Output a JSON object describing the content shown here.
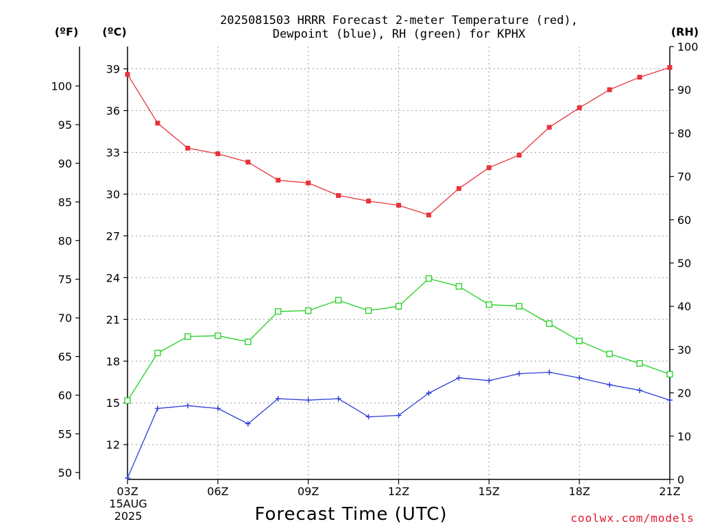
{
  "title_line1": "2025081503 HRRR Forecast 2-meter Temperature (red),",
  "title_line2": "Dewpoint (blue), RH (green) for KPHX",
  "unit_f": "(ºF)",
  "unit_c": "(ºC)",
  "unit_rh": "(RH)",
  "credit": "coolwx.com/models",
  "chart_data": {
    "type": "line",
    "title": "2025081503 HRRR Forecast 2-meter Temperature (red), Dewpoint (blue), RH (green) for KPHX",
    "xlabel": "Forecast Time (UTC)",
    "x_ticks": [
      "03Z",
      "06Z",
      "09Z",
      "12Z",
      "15Z",
      "18Z",
      "21Z"
    ],
    "x_date_lines": [
      "15AUG",
      "2025"
    ],
    "x_hours": [
      3,
      4,
      5,
      6,
      7,
      8,
      9,
      10,
      11,
      12,
      13,
      14,
      15,
      16,
      17,
      18,
      19,
      20,
      21
    ],
    "xlim": [
      3,
      21
    ],
    "grid": true,
    "axes": {
      "celsius": {
        "label": "(ºC)",
        "ticks": [
          12,
          15,
          18,
          21,
          24,
          27,
          30,
          33,
          36,
          39
        ],
        "range": [
          9.5,
          40.6
        ]
      },
      "fahrenheit": {
        "label": "(ºF)",
        "ticks": [
          50,
          55,
          60,
          65,
          70,
          75,
          80,
          85,
          90,
          95,
          100
        ],
        "range": [
          49.1,
          105.1
        ]
      },
      "rh": {
        "label": "(RH)",
        "ticks": [
          0,
          10,
          20,
          30,
          40,
          50,
          60,
          70,
          80,
          90,
          100
        ],
        "range": [
          0,
          100
        ]
      }
    },
    "series": [
      {
        "color": "#e8333a",
        "axis": "celsius",
        "marker": "filled-square",
        "values": [
          38.6,
          35.1,
          33.3,
          32.9,
          32.3,
          31.0,
          30.8,
          29.9,
          29.5,
          29.2,
          28.5,
          30.4,
          31.9,
          32.8,
          34.8,
          36.2,
          37.5,
          38.4,
          39.1
        ]
      },
      {
        "color": "#2a3bd8",
        "axis": "celsius",
        "marker": "plus",
        "values": [
          9.6,
          14.6,
          14.8,
          14.6,
          13.5,
          15.3,
          15.2,
          15.3,
          14.0,
          14.1,
          15.7,
          16.8,
          16.6,
          17.1,
          17.2,
          16.8,
          16.3,
          15.9,
          15.2
        ]
      },
      {
        "color": "#20d020",
        "axis": "rh",
        "marker": "open-square",
        "values": [
          18.2,
          29.2,
          33.0,
          33.2,
          31.8,
          38.8,
          39.0,
          41.4,
          39.0,
          40.0,
          46.4,
          44.6,
          40.4,
          40.0,
          36.0,
          32.0,
          29.0,
          26.8,
          24.3
        ]
      }
    ]
  }
}
